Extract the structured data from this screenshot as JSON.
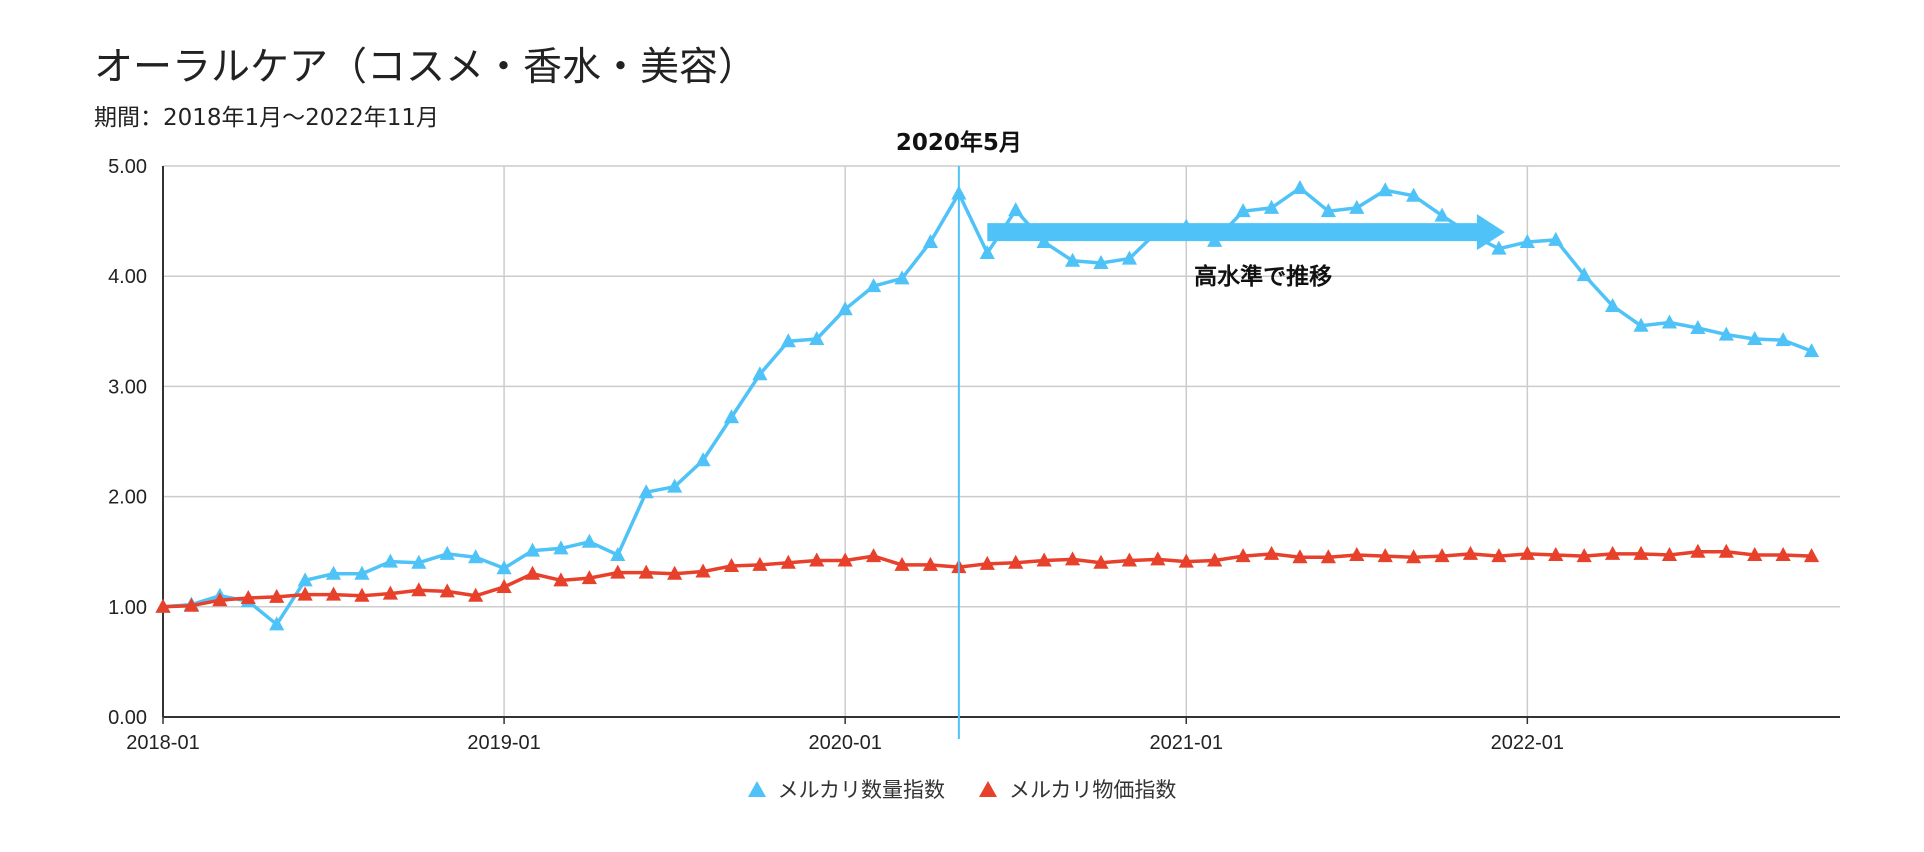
{
  "chart_data": {
    "type": "line",
    "title": "オーラルケア（コスメ・香水・美容）",
    "subtitle": "期間：2018年1月〜2022年11月",
    "ylim": [
      0,
      5
    ],
    "yticks": [
      "0.00",
      "1.00",
      "2.00",
      "3.00",
      "4.00",
      "5.00"
    ],
    "xticks": [
      "2018-01",
      "2019-01",
      "2020-01",
      "2021-01",
      "2022-01"
    ],
    "x_start": "2018-01",
    "grid": true,
    "legend_position": "bottom",
    "annotations": {
      "vline_label": "2020年5月",
      "vline_at": "2020-05",
      "arrow_label": "高水準で推移",
      "arrow_from": "2020-06",
      "arrow_to": "2021-12",
      "arrow_y": 4.4
    },
    "series": [
      {
        "name": "メルカリ数量指数",
        "color": "#4fc3f7",
        "values": [
          1.0,
          1.02,
          1.1,
          1.05,
          0.84,
          1.24,
          1.3,
          1.3,
          1.41,
          1.4,
          1.48,
          1.45,
          1.35,
          1.51,
          1.53,
          1.59,
          1.47,
          2.04,
          2.09,
          2.33,
          2.72,
          3.11,
          3.41,
          3.43,
          3.7,
          3.91,
          3.98,
          4.31,
          4.75,
          4.21,
          4.6,
          4.31,
          4.14,
          4.12,
          4.16,
          4.41,
          4.45,
          4.32,
          4.59,
          4.62,
          4.8,
          4.59,
          4.62,
          4.78,
          4.73,
          4.55,
          4.38,
          4.25,
          4.31,
          4.33,
          4.01,
          3.73,
          3.55,
          3.58,
          3.53,
          3.47,
          3.43,
          3.42,
          3.32
        ]
      },
      {
        "name": "メルカリ物価指数",
        "color": "#e8412b",
        "values": [
          1.0,
          1.01,
          1.06,
          1.08,
          1.09,
          1.11,
          1.11,
          1.1,
          1.12,
          1.15,
          1.14,
          1.1,
          1.18,
          1.3,
          1.24,
          1.26,
          1.31,
          1.31,
          1.3,
          1.32,
          1.37,
          1.38,
          1.4,
          1.42,
          1.42,
          1.46,
          1.38,
          1.38,
          1.36,
          1.39,
          1.4,
          1.42,
          1.43,
          1.4,
          1.42,
          1.43,
          1.41,
          1.42,
          1.46,
          1.48,
          1.45,
          1.45,
          1.47,
          1.46,
          1.45,
          1.46,
          1.48,
          1.46,
          1.48,
          1.47,
          1.46,
          1.48,
          1.48,
          1.47,
          1.5,
          1.5,
          1.47,
          1.47,
          1.46
        ]
      }
    ]
  }
}
